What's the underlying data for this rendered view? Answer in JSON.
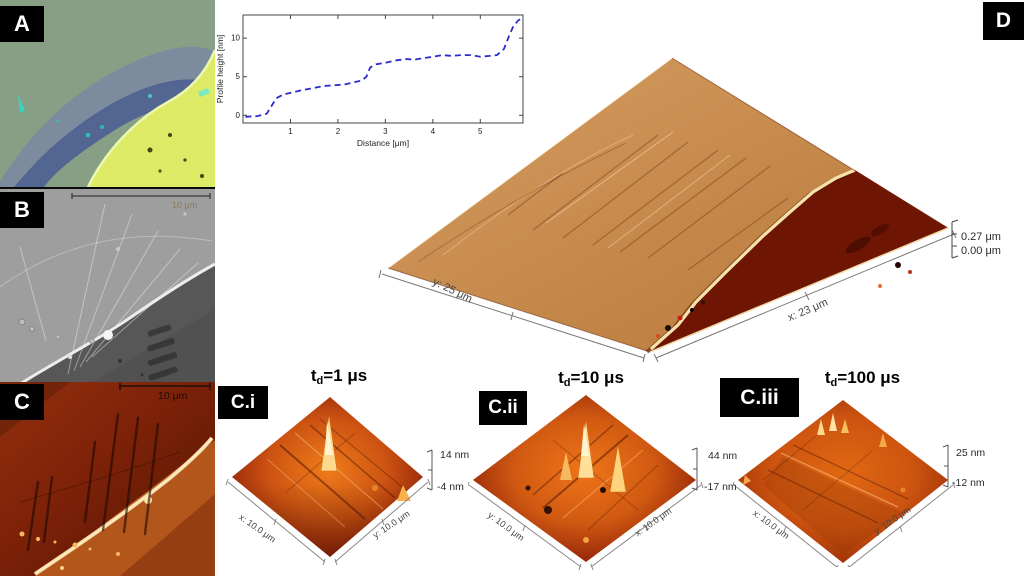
{
  "panels": {
    "a": {
      "label": "A"
    },
    "b": {
      "label": "B",
      "scale_bar": "10 μm"
    },
    "c": {
      "label": "C",
      "scale_bar": "10 μm"
    },
    "d": {
      "label": "D",
      "y_axis_label": "y: 25 μm",
      "x_axis_label": "x: 23 μm",
      "z_scale_max": "0.27 μm",
      "z_scale_min": "0.00 μm"
    },
    "c_i": {
      "label": "C.i",
      "title": {
        "base": "t",
        "sub": "d",
        "rest": "=1 μs"
      },
      "z_scale_max": "14 nm",
      "z_scale_min": "-4 nm",
      "axis_left": "x: 10.0 μm",
      "axis_right": "y: 10.0 μm"
    },
    "c_ii": {
      "label": "C.ii",
      "title": {
        "base": "t",
        "sub": "d",
        "rest": "=10 μs"
      },
      "z_scale_max": "44 nm",
      "z_scale_min": "-17 nm",
      "axis_left": "y: 10.0 μm",
      "axis_right": "x: 10.0 μm"
    },
    "c_iii": {
      "label": "C.iii",
      "title": {
        "base": "t",
        "sub": "d",
        "rest": "=100 μs"
      },
      "z_scale_max": "25 nm",
      "z_scale_min": "-12 nm",
      "axis_left": "x: 10.0 μm",
      "axis_right": "y: 10.0 μm"
    }
  },
  "chart_data": {
    "type": "line",
    "title": "",
    "xlabel": "Distance [μm]",
    "ylabel": "Profile height [nm]",
    "xlim": [
      0,
      5.9
    ],
    "ylim": [
      -1,
      13
    ],
    "xticks": [
      1,
      2,
      3,
      4,
      5
    ],
    "yticks": [
      0,
      5,
      10
    ],
    "grid": false,
    "legend": null,
    "line_style": "dashed",
    "line_color": "#2b2bd0",
    "x": [
      0.05,
      0.3,
      0.5,
      0.6,
      0.7,
      0.85,
      1.0,
      1.2,
      1.45,
      1.7,
      1.95,
      2.15,
      2.35,
      2.5,
      2.6,
      2.68,
      2.8,
      3.0,
      3.2,
      3.45,
      3.6,
      3.8,
      4.0,
      4.2,
      4.4,
      4.6,
      4.8,
      5.0,
      5.2,
      5.35,
      5.5,
      5.6,
      5.7,
      5.8,
      5.88
    ],
    "y": [
      -0.2,
      -0.1,
      0.2,
      1.2,
      2.2,
      2.7,
      2.9,
      3.2,
      3.5,
      3.8,
      3.9,
      4.0,
      4.3,
      4.5,
      5.0,
      6.2,
      6.6,
      6.8,
      7.1,
      7.3,
      7.2,
      7.4,
      7.6,
      7.8,
      7.7,
      7.8,
      7.8,
      7.6,
      7.7,
      7.8,
      8.6,
      10.2,
      11.6,
      12.3,
      12.6
    ]
  },
  "colors": {
    "label_bg": "#000000",
    "label_fg": "#ffffff",
    "plot_line": "#2b2bd0",
    "optical_bg": "#87a085",
    "optical_flake": "#4e5f92",
    "optical_bright": "#dcea66",
    "afm_bright": "#f7e2ac",
    "afm_mid": "#cc5312",
    "afm_dark": "#6e1503",
    "d_plate": "#c68a4c"
  }
}
